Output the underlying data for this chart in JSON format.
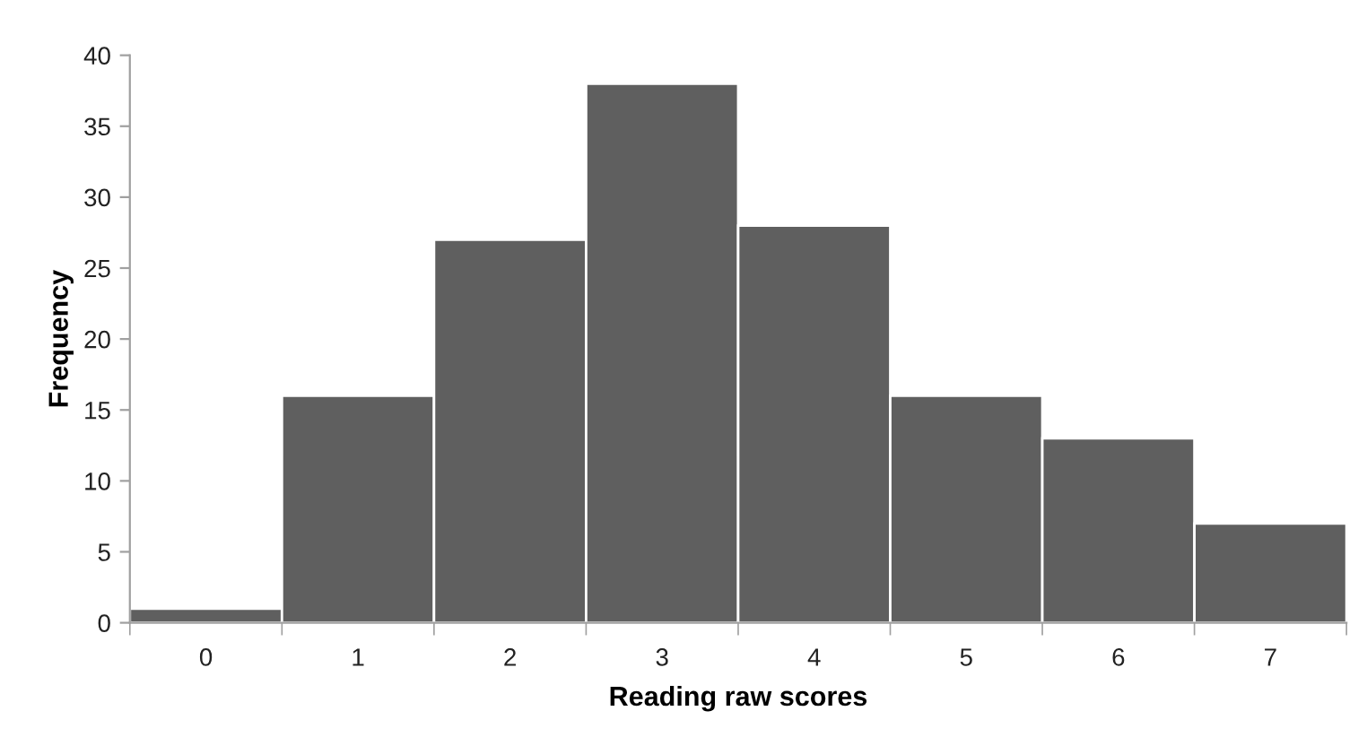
{
  "chart_data": {
    "type": "bar",
    "xlabel": "Reading raw scores",
    "ylabel": "Frequency",
    "categories": [
      "0",
      "1",
      "2",
      "3",
      "4",
      "5",
      "6",
      "7"
    ],
    "values": [
      1,
      16,
      27,
      38,
      28,
      16,
      13,
      7
    ],
    "color": "#5f5f5f",
    "ylim": [
      0,
      40
    ],
    "yticks": [
      0,
      5,
      10,
      15,
      20,
      25,
      30,
      35,
      40
    ],
    "grid": false,
    "legend": false
  }
}
